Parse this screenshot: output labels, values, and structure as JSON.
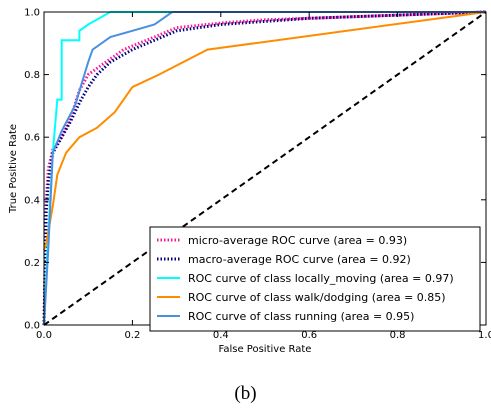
{
  "caption": "(b)",
  "chart_data": {
    "type": "line",
    "xlabel": "False Positive Rate",
    "ylabel": "True Positive Rate",
    "xlim": [
      0,
      1.0
    ],
    "ylim": [
      0,
      1.0
    ],
    "xticks": [
      "0.0",
      "0.2",
      "0.4",
      "0.6",
      "0.8",
      "1.0"
    ],
    "yticks": [
      "0.0",
      "0.2",
      "0.4",
      "0.6",
      "0.8",
      "1.0"
    ],
    "grid": false,
    "legend_position": "lower-right",
    "series": [
      {
        "name": "micro-average ROC curve (area = 0.93)",
        "color": "#ff1493",
        "style": "dotted",
        "x": [
          0,
          0.005,
          0.01,
          0.02,
          0.04,
          0.06,
          0.08,
          0.1,
          0.13,
          0.18,
          0.25,
          0.3,
          0.4,
          0.5,
          0.7,
          1.0
        ],
        "y": [
          0,
          0.4,
          0.5,
          0.56,
          0.6,
          0.66,
          0.75,
          0.8,
          0.83,
          0.88,
          0.92,
          0.95,
          0.965,
          0.975,
          0.985,
          1.0
        ]
      },
      {
        "name": "macro-average ROC curve (area = 0.92)",
        "color": "#000080",
        "style": "dotted",
        "x": [
          0,
          0.005,
          0.01,
          0.02,
          0.04,
          0.06,
          0.08,
          0.1,
          0.12,
          0.15,
          0.2,
          0.25,
          0.3,
          0.4,
          0.6,
          1.0
        ],
        "y": [
          0,
          0.36,
          0.46,
          0.55,
          0.6,
          0.65,
          0.71,
          0.76,
          0.8,
          0.84,
          0.88,
          0.91,
          0.94,
          0.96,
          0.98,
          1.0
        ]
      },
      {
        "name": "ROC curve of class locally_moving (area = 0.97)",
        "color": "#00ffff",
        "style": "solid",
        "x": [
          0,
          0.01,
          0.02,
          0.03,
          0.04,
          0.04,
          0.08,
          0.08,
          0.1,
          0.15,
          0.16,
          1.0
        ],
        "y": [
          0,
          0.3,
          0.55,
          0.72,
          0.72,
          0.91,
          0.91,
          0.94,
          0.96,
          1.0,
          1.0,
          1.0
        ]
      },
      {
        "name": "ROC curve of class walk/dodging (area = 0.85)",
        "color": "#ff8c00",
        "style": "solid",
        "x": [
          0,
          0.005,
          0.02,
          0.03,
          0.05,
          0.08,
          0.12,
          0.16,
          0.2,
          0.26,
          0.37,
          1.0
        ],
        "y": [
          0.24,
          0.26,
          0.38,
          0.48,
          0.55,
          0.6,
          0.63,
          0.68,
          0.76,
          0.8,
          0.88,
          1.0
        ]
      },
      {
        "name": "ROC curve of class running (area = 0.95)",
        "color": "#4a90e2",
        "style": "solid",
        "x": [
          0,
          0.01,
          0.02,
          0.04,
          0.07,
          0.1,
          0.11,
          0.13,
          0.15,
          0.2,
          0.25,
          0.27,
          0.29,
          1.0
        ],
        "y": [
          0,
          0.25,
          0.55,
          0.62,
          0.7,
          0.84,
          0.88,
          0.9,
          0.92,
          0.94,
          0.96,
          0.98,
          1.0,
          1.0
        ]
      },
      {
        "name": "",
        "color": "#000000",
        "style": "dashed",
        "x": [
          0,
          1.0
        ],
        "y": [
          0,
          1.0
        ]
      }
    ]
  }
}
